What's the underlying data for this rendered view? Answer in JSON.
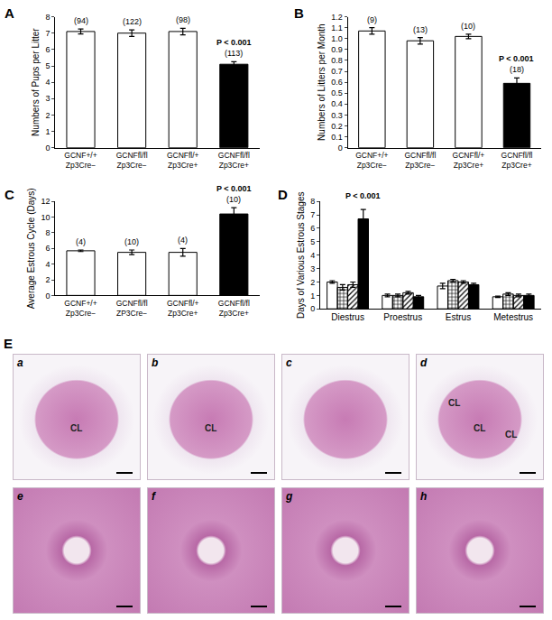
{
  "chart_data": [
    {
      "type": "bar",
      "title": "A",
      "ylabel": "Numbers of Pups per Litter",
      "categories": [
        "GCNF+/+ Zp3Cre−",
        "GCNFfl/fl Zp3Cre−",
        "GCNFfl/+ Zp3Cre+",
        "GCNFfl/fl Zp3Cre+"
      ],
      "values": [
        7.1,
        7.0,
        7.1,
        5.1
      ],
      "errors": [
        0.15,
        0.2,
        0.2,
        0.15
      ],
      "counts": [
        "(94)",
        "(122)",
        "(98)",
        "(113)"
      ],
      "colors": [
        "#ffffff",
        "#ffffff",
        "#ffffff",
        "#000000"
      ],
      "ylim": [
        0,
        8
      ],
      "yticks": [
        0,
        1,
        2,
        3,
        4,
        5,
        6,
        7,
        8
      ],
      "annotations": [
        {
          "text": "P < 0.001",
          "category": 3
        }
      ]
    },
    {
      "type": "bar",
      "title": "B",
      "ylabel": "Numbers of Litters per Month",
      "categories": [
        "GCNF+/+ Zp3Cre−",
        "GCNFfl/fl Zp3Cre−",
        "GCNFfl/+ Zp3Cre+",
        "GCNFfl/fl Zp3Cre+"
      ],
      "values": [
        1.07,
        0.98,
        1.02,
        0.59
      ],
      "errors": [
        0.03,
        0.03,
        0.02,
        0.05
      ],
      "counts": [
        "(9)",
        "(13)",
        "(10)",
        "(18)"
      ],
      "colors": [
        "#ffffff",
        "#ffffff",
        "#ffffff",
        "#000000"
      ],
      "ylim": [
        0,
        1.2
      ],
      "yticks": [
        0,
        0.1,
        0.2,
        0.3,
        0.4,
        0.5,
        0.6,
        0.7,
        0.8,
        0.9,
        {
          "value": 1,
          "label": "1.0"
        },
        1.1,
        1.2
      ],
      "annotations": [
        {
          "text": "P < 0.001",
          "category": 3
        }
      ]
    },
    {
      "type": "bar",
      "title": "C",
      "ylabel": "Average Estrous Cycle (Days)",
      "categories": [
        "GCNF+/+ Zp3Cre−",
        "GCNFfl/fl ZP3Cre−",
        "GCNFfl/+ Zp3Cre+",
        "GCNFfl/fl Zp3Cre+"
      ],
      "values": [
        5.7,
        5.5,
        5.5,
        10.4
      ],
      "errors": [
        0.1,
        0.3,
        0.5,
        0.8
      ],
      "counts": [
        "(4)",
        "(10)",
        "(4)",
        "(10)"
      ],
      "colors": [
        "#ffffff",
        "#ffffff",
        "#ffffff",
        "#000000"
      ],
      "ylim": [
        0,
        12
      ],
      "yticks": [
        0,
        2,
        4,
        6,
        8,
        10,
        12
      ],
      "annotations": [
        {
          "text": "P < 0.001",
          "category": 3
        }
      ]
    },
    {
      "type": "bar",
      "title": "D",
      "ylabel": "Days of Various Estrous Stages",
      "categories": [
        "Diestrus",
        "Proestrus",
        "Estrus",
        "Metestrus"
      ],
      "series": [
        {
          "color": "#ffffff",
          "values": [
            2.0,
            1.0,
            1.7,
            0.9
          ],
          "errors": [
            0.1,
            0.1,
            0.2,
            0.05
          ]
        },
        {
          "color": "#ffffff",
          "values": [
            1.6,
            1.0,
            2.1,
            1.1
          ],
          "errors": [
            0.2,
            0.1,
            0.1,
            0.1
          ]
        },
        {
          "color": "#ffffff",
          "values": [
            1.8,
            1.2,
            2.0,
            1.0
          ],
          "errors": [
            0.2,
            0.1,
            0.1,
            0.1
          ]
        },
        {
          "color": "#000000",
          "values": [
            6.7,
            0.9,
            1.8,
            1.0
          ],
          "errors": [
            0.7,
            0.1,
            0.1,
            0.1
          ]
        }
      ],
      "ylim": [
        0,
        8
      ],
      "yticks": [
        0,
        1,
        2,
        3,
        4,
        5,
        6,
        7,
        8
      ],
      "annotations": [
        {
          "text": "P < 0.001",
          "category": 0,
          "series": 3
        }
      ]
    }
  ],
  "micrographs": {
    "title": "E",
    "panels": [
      {
        "label": "a",
        "marks": [
          "CL"
        ]
      },
      {
        "label": "b",
        "marks": [
          "CL"
        ]
      },
      {
        "label": "c",
        "marks": []
      },
      {
        "label": "d",
        "marks": [
          "CL",
          "CL",
          "CL"
        ]
      },
      {
        "label": "e",
        "marks": []
      },
      {
        "label": "f",
        "marks": []
      },
      {
        "label": "g",
        "marks": []
      },
      {
        "label": "h",
        "marks": []
      }
    ]
  }
}
